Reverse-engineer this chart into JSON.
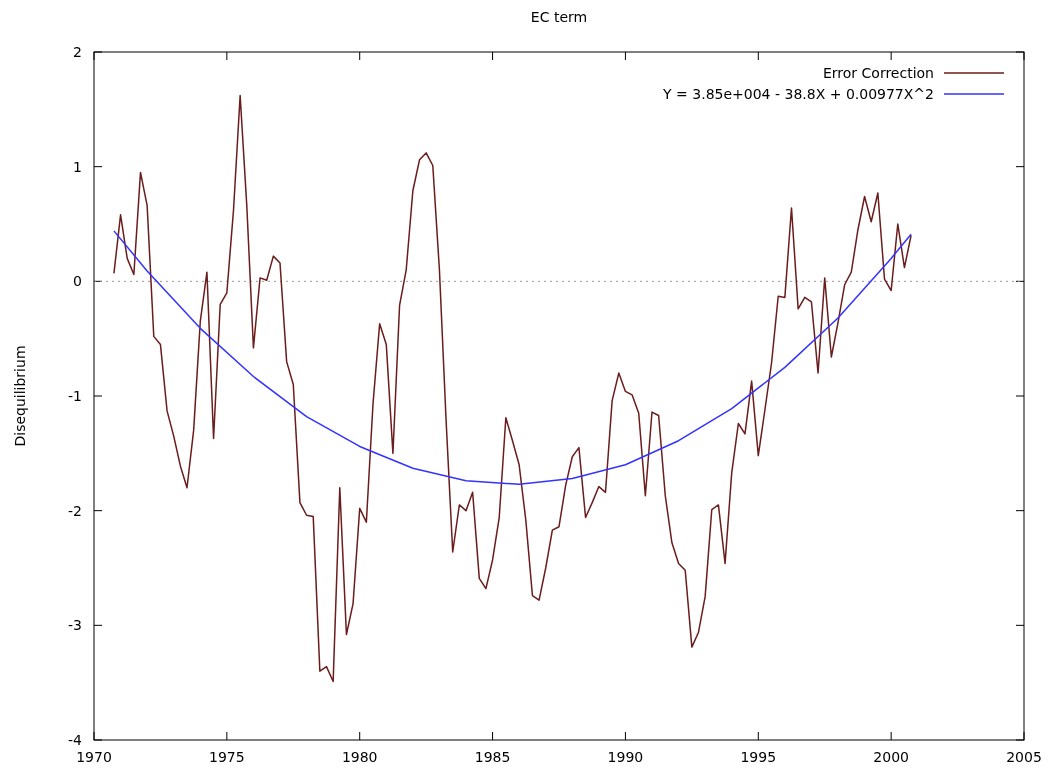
{
  "chart_data": {
    "type": "line",
    "title": "EC term",
    "ylabel": "Disequilibrium",
    "xlim": [
      1970,
      2005
    ],
    "xticks": [
      1970,
      1975,
      1980,
      1985,
      1990,
      1995,
      2000,
      2005
    ],
    "ylim": [
      -4,
      2
    ],
    "yticks": [
      -4,
      -3,
      -2,
      -1,
      0,
      1,
      2
    ],
    "grid": false,
    "legend": "top right",
    "ref_lines": [
      {
        "axis": "y",
        "value": 0,
        "color": "#999999",
        "line_style": "dotted"
      }
    ],
    "series": [
      {
        "name": "Error Correction",
        "color": "#6b1c1c",
        "x": [
          1970.75,
          1971,
          1971.25,
          1971.5,
          1971.75,
          1972,
          1972.25,
          1972.5,
          1972.75,
          1973,
          1973.25,
          1973.5,
          1973.75,
          1974,
          1974.25,
          1974.5,
          1974.75,
          1975,
          1975.25,
          1975.5,
          1975.75,
          1976,
          1976.25,
          1976.5,
          1976.75,
          1977,
          1977.25,
          1977.5,
          1977.75,
          1978,
          1978.25,
          1978.5,
          1978.75,
          1979,
          1979.25,
          1979.5,
          1979.75,
          1980,
          1980.25,
          1980.5,
          1980.75,
          1981,
          1981.25,
          1981.5,
          1981.75,
          1982,
          1982.25,
          1982.5,
          1982.75,
          1983,
          1983.25,
          1983.5,
          1983.75,
          1984,
          1984.25,
          1984.5,
          1984.75,
          1985,
          1985.25,
          1985.5,
          1985.75,
          1986,
          1986.25,
          1986.5,
          1986.75,
          1987,
          1987.25,
          1987.5,
          1987.75,
          1988,
          1988.25,
          1988.5,
          1988.75,
          1989,
          1989.25,
          1989.5,
          1989.75,
          1990,
          1990.25,
          1990.5,
          1990.75,
          1991,
          1991.25,
          1991.5,
          1991.75,
          1992,
          1992.25,
          1992.5,
          1992.75,
          1993,
          1993.25,
          1993.5,
          1993.75,
          1994,
          1994.25,
          1994.5,
          1994.75,
          1995,
          1995.25,
          1995.5,
          1995.75,
          1996,
          1996.25,
          1996.5,
          1996.75,
          1997,
          1997.25,
          1997.5,
          1997.75,
          1998,
          1998.25,
          1998.5,
          1998.75,
          1999,
          1999.25,
          1999.5,
          1999.75,
          2000,
          2000.25,
          2000.5,
          2000.75
        ],
        "values": [
          0.07,
          0.58,
          0.2,
          0.06,
          0.95,
          0.66,
          -0.48,
          -0.55,
          -1.13,
          -1.35,
          -1.61,
          -1.8,
          -1.3,
          -0.35,
          0.08,
          -1.37,
          -0.2,
          -0.1,
          0.62,
          1.62,
          0.66,
          -0.58,
          0.03,
          0.01,
          0.22,
          0.16,
          -0.7,
          -0.9,
          -1.93,
          -2.04,
          -2.05,
          -3.4,
          -3.36,
          -3.49,
          -1.8,
          -3.08,
          -2.81,
          -1.98,
          -2.1,
          -1.07,
          -0.37,
          -0.55,
          -1.5,
          -0.21,
          0.1,
          0.79,
          1.06,
          1.12,
          1.01,
          0.1,
          -1.21,
          -2.36,
          -1.95,
          -2.0,
          -1.84,
          -2.59,
          -2.68,
          -2.43,
          -2.06,
          -1.19,
          -1.39,
          -1.6,
          -2.08,
          -2.74,
          -2.78,
          -2.5,
          -2.17,
          -2.14,
          -1.78,
          -1.53,
          -1.45,
          -2.06,
          -1.93,
          -1.79,
          -1.84,
          -1.04,
          -0.8,
          -0.96,
          -0.99,
          -1.15,
          -1.87,
          -1.14,
          -1.17,
          -1.87,
          -2.28,
          -2.46,
          -2.52,
          -3.19,
          -3.06,
          -2.75,
          -1.99,
          -1.95,
          -2.46,
          -1.67,
          -1.24,
          -1.33,
          -0.87,
          -1.52,
          -1.12,
          -0.71,
          -0.13,
          -0.14,
          0.64,
          -0.24,
          -0.14,
          -0.18,
          -0.8,
          0.03,
          -0.66,
          -0.36,
          -0.03,
          0.08,
          0.45,
          0.74,
          0.52,
          0.77,
          0.02,
          -0.08,
          0.5,
          0.12,
          0.4
        ]
      },
      {
        "name": "Y = 3.85e+004 - 38.8X + 0.00977X^2",
        "color": "#3333ff",
        "x": [
          1970.75,
          1972,
          1974,
          1976,
          1978,
          1980,
          1982,
          1984,
          1986,
          1988,
          1990,
          1992,
          1994,
          1996,
          1998,
          2000,
          2000.75
        ],
        "values": [
          0.44,
          0.09,
          -0.41,
          -0.83,
          -1.18,
          -1.44,
          -1.63,
          -1.74,
          -1.77,
          -1.72,
          -1.6,
          -1.39,
          -1.11,
          -0.75,
          -0.32,
          0.2,
          0.41
        ]
      }
    ]
  }
}
